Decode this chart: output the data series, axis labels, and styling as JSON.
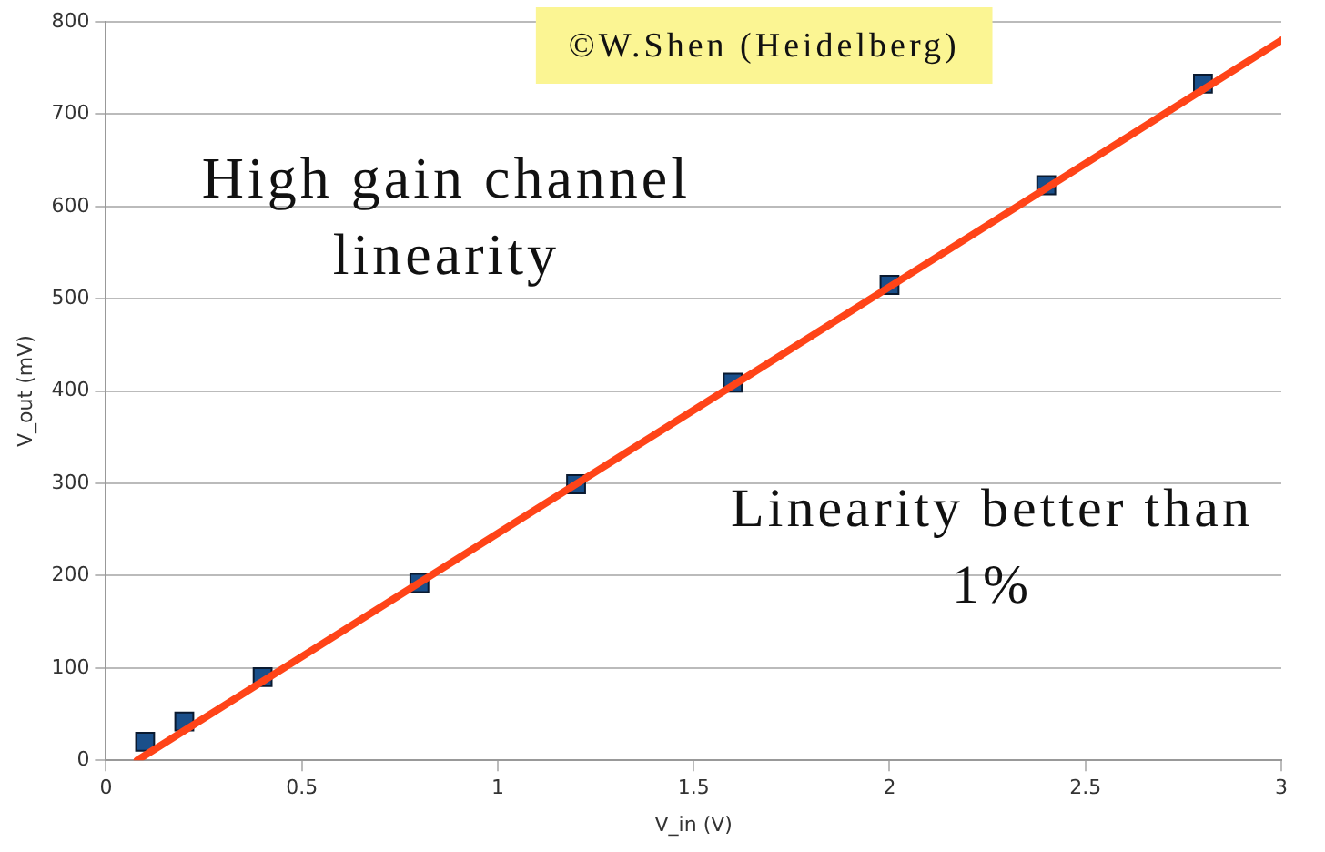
{
  "chart_data": {
    "type": "scatter",
    "xlabel": "V_in (V)",
    "ylabel": "V_out (mV)",
    "xlim": [
      0,
      3
    ],
    "xticks": [
      0,
      0.5,
      1,
      1.5,
      2,
      2.5,
      3
    ],
    "ylim": [
      0,
      800
    ],
    "yticks": [
      0,
      100,
      200,
      300,
      400,
      500,
      600,
      700,
      800
    ],
    "grid": "y",
    "legend": false,
    "annotations": [
      "©W.Shen (Heidelberg)",
      "High gain channel\nlinearity",
      "Linearity better than\n1%"
    ],
    "series": [
      {
        "marker": "square",
        "color": "#1a4f8a",
        "x": [
          0.1,
          0.2,
          0.4,
          0.8,
          1.2,
          1.6,
          2.0,
          2.4,
          2.8
        ],
        "values": [
          20,
          42,
          90,
          192,
          299,
          409,
          515,
          623,
          733
        ]
      },
      {
        "type": "line",
        "marker": "none",
        "color": "#ff4418",
        "x": [
          0.08,
          3
        ],
        "values": [
          0,
          780
        ]
      }
    ]
  }
}
